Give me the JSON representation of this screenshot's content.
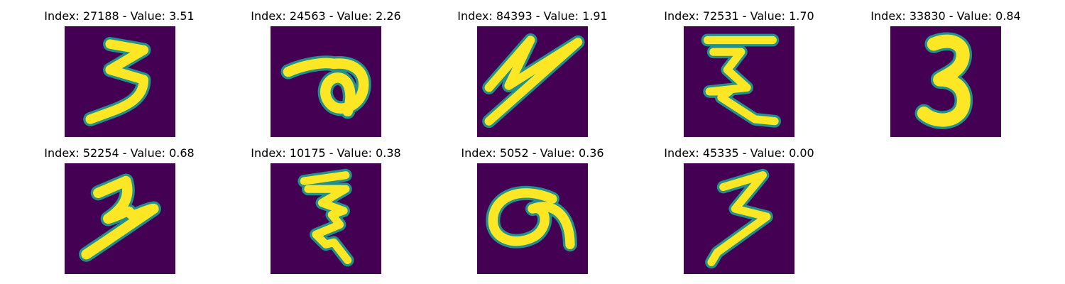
{
  "figure": {
    "panel_titles": [
      "Index: 27188 - Value: 3.51",
      "Index: 24563 - Value: 2.26",
      "Index: 84393 - Value: 1.91",
      "Index: 72531 - Value: 1.70",
      "Index: 33830 - Value: 0.84",
      "Index: 52254 - Value: 0.68",
      "Index: 10175 - Value: 0.38",
      "Index: 5052 - Value: 0.36",
      "Index: 45335 - Value: 0.00"
    ],
    "colors": {
      "background": "#440154",
      "edge": "#21918c",
      "stroke": "#fde725"
    }
  }
}
